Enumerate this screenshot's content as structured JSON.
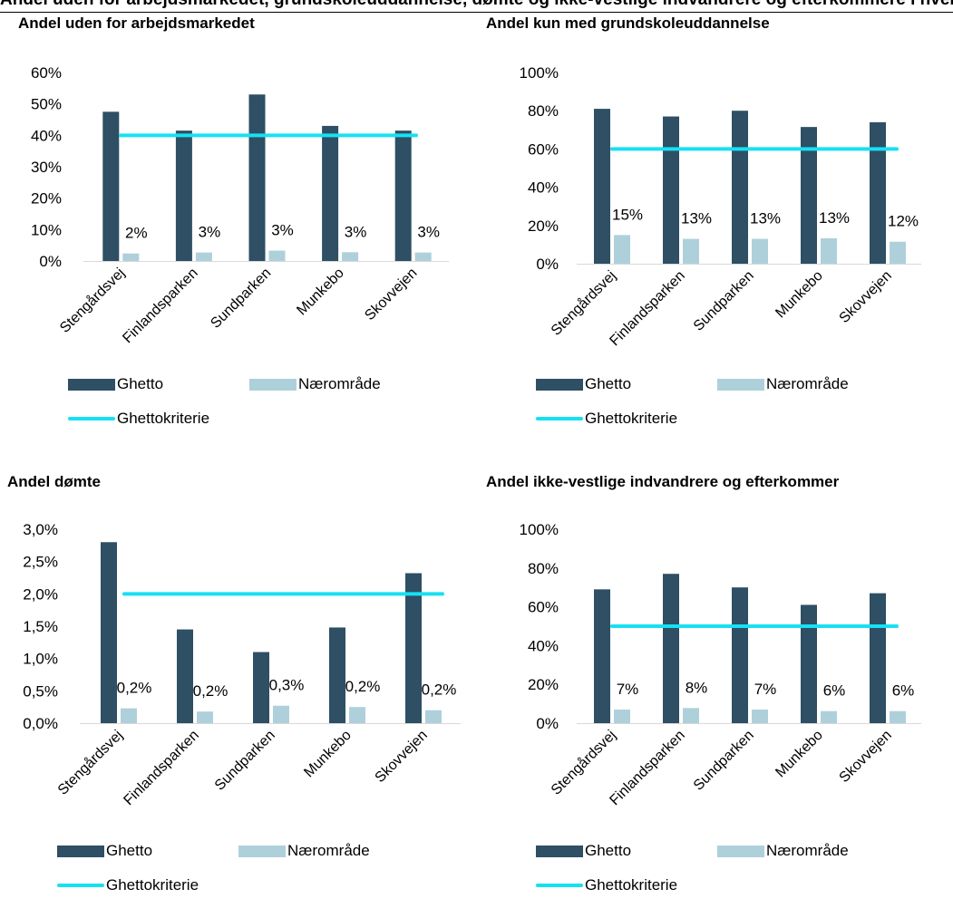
{
  "header": {
    "clipped_title": "Andel uden for arbejdsmarkedet, grundskoleuddannelse, dømte og ikke-vestlige indvandrere og efterkommere i hvert ghetto og hvert nærområde i Danmarks ghettoer"
  },
  "colors": {
    "ghetto": "#2e4f64",
    "naeromraade": "#aed0db",
    "kriterie": "#17e0f3"
  },
  "legend": {
    "ghetto": "Ghetto",
    "naeromraade": "Nærområde",
    "kriterie": "Ghettokriterie"
  },
  "chart_data": [
    {
      "type": "bar",
      "title": "Andel uden for arbejdsmarkedet",
      "categories": [
        "Stengårdsvej",
        "Finlandsparken",
        "Sundparken",
        "Munkebo",
        "Skovvejen"
      ],
      "series": [
        {
          "name": "Ghetto",
          "values": [
            47.5,
            41.5,
            53,
            43,
            41.5
          ]
        },
        {
          "name": "Nærområde",
          "values": [
            2.4,
            2.7,
            3.3,
            2.8,
            2.7
          ],
          "labels": [
            "2%",
            "3%",
            "3%",
            "3%",
            "3%"
          ]
        },
        {
          "name": "Ghettokriterie",
          "type": "line",
          "value": 40
        }
      ],
      "yticks": [
        "0%",
        "10%",
        "20%",
        "30%",
        "40%",
        "50%",
        "60%"
      ],
      "ylim": [
        0,
        60
      ]
    },
    {
      "type": "bar",
      "title": "Andel kun med grundskoleuddannelse",
      "categories": [
        "Stengårdsvej",
        "Finlandsparken",
        "Sundparken",
        "Munkebo",
        "Skovvejen"
      ],
      "series": [
        {
          "name": "Ghetto",
          "values": [
            81,
            77,
            80,
            71.5,
            74
          ]
        },
        {
          "name": "Nærområde",
          "values": [
            15,
            13,
            13,
            13.3,
            11.5
          ],
          "labels": [
            "15%",
            "13%",
            "13%",
            "13%",
            "12%"
          ]
        },
        {
          "name": "Ghettokriterie",
          "type": "line",
          "value": 60
        }
      ],
      "yticks": [
        "0%",
        "20%",
        "40%",
        "60%",
        "80%",
        "100%"
      ],
      "ylim": [
        0,
        100
      ]
    },
    {
      "type": "bar",
      "title": "Andel dømte",
      "categories": [
        "Stengårdsvej",
        "Finlandsparken",
        "Sundparken",
        "Munkebo",
        "Skovvejen"
      ],
      "series": [
        {
          "name": "Ghetto",
          "values": [
            2.8,
            1.45,
            1.1,
            1.48,
            2.32
          ]
        },
        {
          "name": "Nærområde",
          "values": [
            0.23,
            0.18,
            0.27,
            0.25,
            0.2
          ],
          "labels": [
            "0,2%",
            "0,2%",
            "0,3%",
            "0,2%",
            "0,2%"
          ]
        },
        {
          "name": "Ghettokriterie",
          "type": "line",
          "value": 2.0
        }
      ],
      "yticks": [
        "0,0%",
        "0,5%",
        "1,0%",
        "1,5%",
        "2,0%",
        "2,5%",
        "3,0%"
      ],
      "ylim": [
        0,
        3
      ]
    },
    {
      "type": "bar",
      "title": "Andel ikke-vestlige indvandrere og efterkommer",
      "categories": [
        "Stengårdsvej",
        "Finlandsparken",
        "Sundparken",
        "Munkebo",
        "Skovvejen"
      ],
      "series": [
        {
          "name": "Ghetto",
          "values": [
            69,
            77,
            70,
            61,
            67
          ]
        },
        {
          "name": "Nærområde",
          "values": [
            7,
            7.8,
            7,
            6.2,
            6.2
          ],
          "labels": [
            "7%",
            "8%",
            "7%",
            "6%",
            "6%"
          ]
        },
        {
          "name": "Ghettokriterie",
          "type": "line",
          "value": 50
        }
      ],
      "yticks": [
        "0%",
        "20%",
        "40%",
        "60%",
        "80%",
        "100%"
      ],
      "ylim": [
        0,
        100
      ]
    }
  ]
}
